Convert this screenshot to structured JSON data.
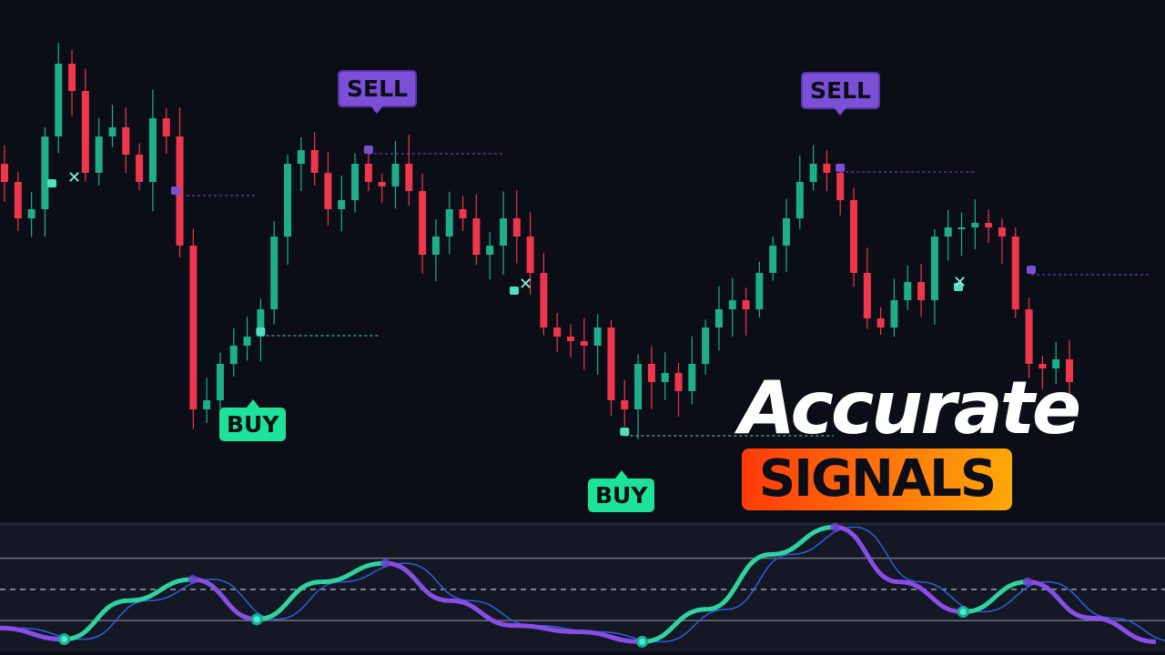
{
  "colors": {
    "background": "#0b0e17",
    "bull": "#1fae8a",
    "bear": "#f0364c",
    "sell": "#7b4fd6",
    "buy": "#1de39a",
    "oscillator_up": "#2fd3a0",
    "oscillator_down": "#8a4de8",
    "signal_line": "#2f5fe0"
  },
  "headline": {
    "line1": "Accurate",
    "line2": "SIGNALS"
  },
  "signals": [
    {
      "type": "sell",
      "label": "SELL",
      "index": 27
    },
    {
      "type": "sell",
      "label": "SELL",
      "index": 62
    },
    {
      "type": "buy",
      "label": "BUY",
      "index": 19
    },
    {
      "type": "buy",
      "label": "BUY",
      "index": 46
    }
  ],
  "chart_data": [
    {
      "type": "candlestick",
      "title": "",
      "xlabel": "",
      "ylabel": "",
      "grid": false,
      "close": [
        400,
        360,
        370,
        450,
        530,
        500,
        410,
        450,
        460,
        430,
        400,
        470,
        450,
        330,
        150,
        160,
        200,
        220,
        230,
        260,
        340,
        420,
        435,
        410,
        370,
        380,
        420,
        400,
        395,
        420,
        390,
        320,
        340,
        370,
        360,
        320,
        330,
        360,
        340,
        300,
        240,
        230,
        225,
        220,
        240,
        160,
        150,
        200,
        180,
        190,
        170,
        200,
        240,
        260,
        270,
        260,
        300,
        330,
        360,
        400,
        420,
        410,
        380,
        300,
        250,
        240,
        270,
        290,
        270,
        340,
        350,
        350,
        355,
        350,
        340,
        260,
        200,
        195,
        205,
        180
      ]
    },
    {
      "type": "line",
      "title": "",
      "grid": false,
      "ylim": [
        0,
        100
      ],
      "levels": [
        24,
        49,
        74
      ],
      "series": [
        {
          "values": [
            18,
            9,
            40,
            57,
            25,
            55,
            70,
            40,
            20,
            15,
            7,
            33,
            77,
            99,
            55,
            31,
            55,
            26,
            7
          ]
        }
      ]
    }
  ]
}
